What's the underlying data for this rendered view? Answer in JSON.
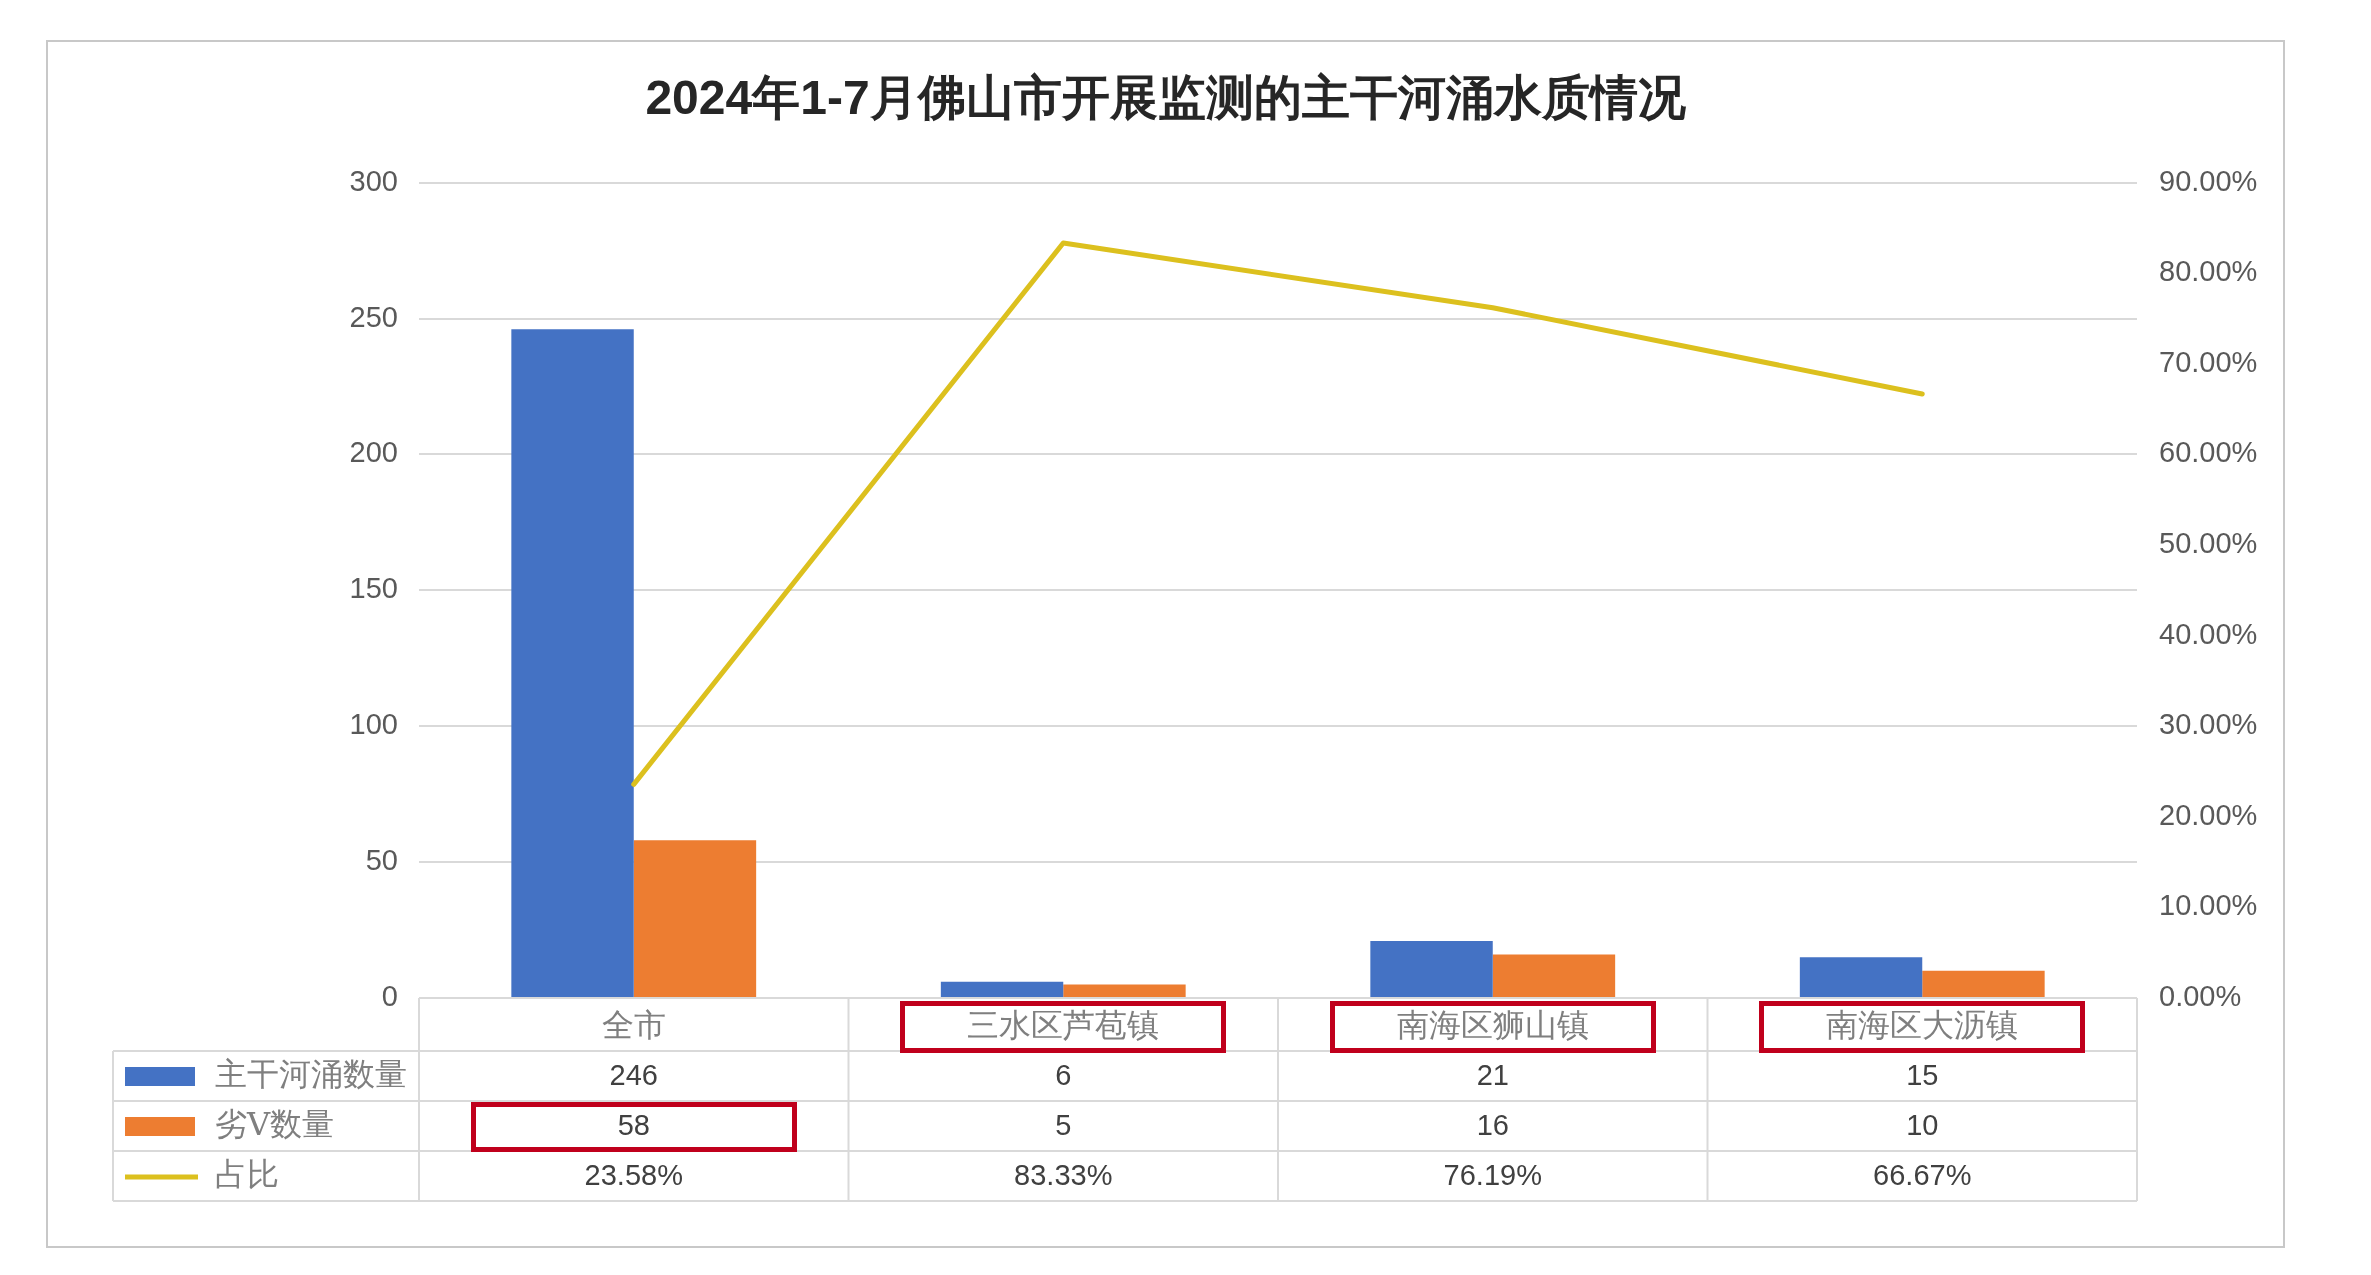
{
  "chart_data": {
    "type": "bar",
    "title": "2024年1-7月佛山市开展监测的主干河涌水质情况",
    "categories": [
      "全市",
      "三水区芦苞镇",
      "南海区狮山镇",
      "南海区大沥镇"
    ],
    "series": [
      {
        "name": "主干河涌数量",
        "color": "#4472c4",
        "values": [
          246,
          6,
          21,
          15
        ],
        "value_labels": [
          "246",
          "6",
          "21",
          "15"
        ]
      },
      {
        "name": "劣Ⅴ数量",
        "color": "#ed7d31",
        "values": [
          58,
          5,
          16,
          10
        ],
        "value_labels": [
          "58",
          "5",
          "16",
          "10"
        ]
      },
      {
        "name": "占比",
        "type": "line",
        "axis": "y2",
        "color": "#dcc01e",
        "values": [
          23.58,
          83.33,
          76.19,
          66.67
        ],
        "value_labels": [
          "23.58%",
          "83.33%",
          "76.19%",
          "66.67%"
        ]
      }
    ],
    "ylim": [
      0,
      300
    ],
    "yticks": [
      0,
      50,
      100,
      150,
      200,
      250,
      300
    ],
    "y2lim": [
      0,
      90
    ],
    "y2ticks": [
      {
        "value": 0,
        "label": "0.00%"
      },
      {
        "value": 10,
        "label": "10.00%"
      },
      {
        "value": 20,
        "label": "20.00%"
      },
      {
        "value": 30,
        "label": "30.00%"
      },
      {
        "value": 40,
        "label": "40.00%"
      },
      {
        "value": 50,
        "label": "50.00%"
      },
      {
        "value": 60,
        "label": "60.00%"
      },
      {
        "value": 70,
        "label": "70.00%"
      },
      {
        "value": 80,
        "label": "80.00%"
      },
      {
        "value": 90,
        "label": "90.00%"
      }
    ],
    "grid": "y",
    "legend": "bottom",
    "marker": "none"
  }
}
